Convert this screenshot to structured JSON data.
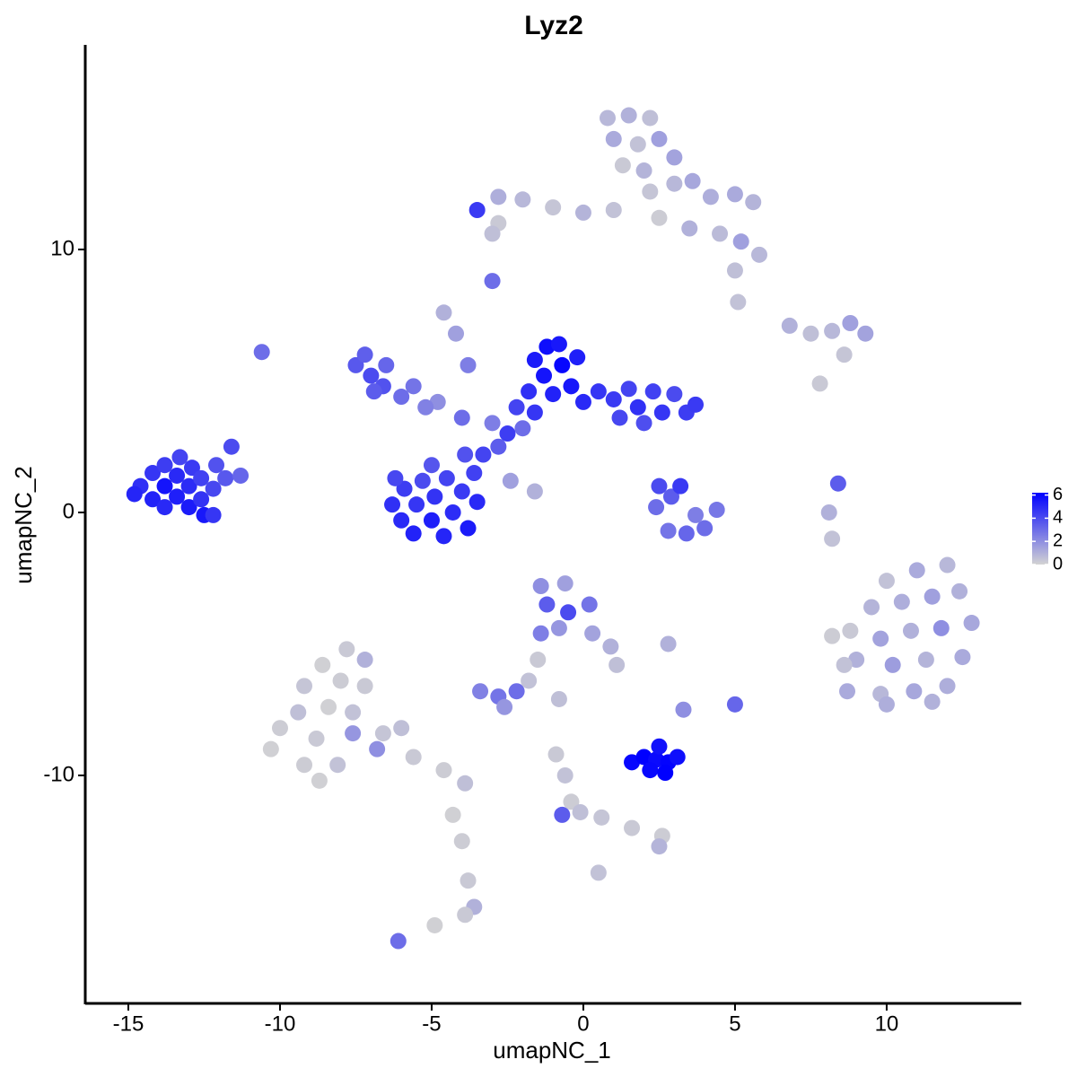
{
  "chart_data": {
    "type": "scatter",
    "title": "Lyz2",
    "x_label": "umapNC_1",
    "y_label": "umapNC_2",
    "xlim": [
      -16.42,
      14.44
    ],
    "xticks": [
      -15,
      -10,
      -5,
      0,
      5,
      10
    ],
    "ylim": [
      -18.67,
      17.78
    ],
    "yticks": [
      -10,
      0,
      10
    ],
    "colors": [
      "#d3d3d3",
      "#0000ff"
    ],
    "color_lim": [
      0,
      6.2
    ],
    "color_ticks": [
      0,
      2,
      4,
      6
    ],
    "x": [
      -14.6,
      -14.2,
      -14.2,
      -13.8,
      -13.8,
      -13.8,
      -13.4,
      -13.4,
      -13.3,
      -13.0,
      -13.0,
      -12.9,
      -12.6,
      -12.6,
      -12.5,
      -12.2,
      -12.1,
      -11.8,
      -11.6,
      -11.3,
      -14.8,
      -12.2,
      -6.3,
      -6.0,
      -5.9,
      -5.6,
      -5.5,
      -5.3,
      -5.0,
      -4.9,
      -4.6,
      -4.5,
      -4.3,
      -4.0,
      -3.8,
      -3.6,
      -3.9,
      -6.2,
      -5.0,
      -3.5,
      -3.3,
      -2.8,
      -2.5,
      -2.0,
      -1.6,
      -3.0,
      -4.0,
      -4.8,
      -7.5,
      -7.0,
      -7.2,
      -6.6,
      -6.5,
      -6.0,
      -5.6,
      -5.2,
      -6.9,
      -4.6,
      -4.2,
      -3.8,
      -1.6,
      -1.2,
      -0.8,
      -1.3,
      -0.7,
      -0.4,
      -1.0,
      -1.8,
      0.0,
      -0.2,
      -2.2,
      0.5,
      1.0,
      1.5,
      1.8,
      2.3,
      2.6,
      3.0,
      3.4,
      2.0,
      1.2,
      3.7,
      2.5,
      2.9,
      3.2,
      2.4,
      2.8,
      3.4,
      4.0,
      4.4,
      3.7,
      -2.4,
      -1.6,
      0.8,
      1.5,
      2.2,
      1.0,
      1.8,
      2.5,
      1.3,
      2.0,
      3.0,
      2.2,
      3.0,
      3.6,
      4.2,
      5.0,
      5.6,
      2.5,
      3.5,
      4.5,
      5.2,
      5.8,
      5.0,
      1.0,
      0.0,
      -1.0,
      -2.0,
      -2.8,
      -3.5,
      -2.8,
      -3.0,
      -3.0,
      5.1,
      6.8,
      7.5,
      8.2,
      8.8,
      9.3,
      8.6,
      7.8,
      8.4,
      8.1,
      8.2,
      -10.6,
      12.0,
      11.0,
      10.0,
      12.4,
      11.5,
      10.5,
      9.5,
      12.8,
      11.8,
      10.8,
      9.8,
      8.8,
      8.2,
      12.5,
      11.3,
      10.2,
      9.0,
      12.0,
      10.9,
      9.8,
      8.7,
      11.5,
      10.0,
      8.6,
      -7.8,
      -8.6,
      -7.2,
      -8.0,
      -9.2,
      -7.2,
      -8.4,
      -9.4,
      -7.6,
      -10.0,
      -8.8,
      -7.6,
      -6.6,
      -10.3,
      -9.2,
      -8.1,
      -6.8,
      -5.6,
      -4.6,
      -3.9,
      -8.7,
      -6.0,
      -4.3,
      -4.0,
      -3.8,
      -3.6,
      -3.9,
      -4.9,
      -6.1,
      -1.4,
      -0.6,
      -1.2,
      -0.5,
      0.2,
      -0.8,
      0.3,
      0.9,
      1.1,
      -1.4,
      -1.5,
      -1.8,
      -3.4,
      -2.8,
      -2.2,
      -2.6,
      -0.8,
      1.6,
      2.0,
      2.4,
      2.8,
      3.1,
      2.2,
      2.7,
      2.5,
      3.3,
      5.0,
      2.8,
      -0.9,
      -0.6,
      -0.4,
      -0.1,
      0.6,
      1.6,
      2.6,
      2.5,
      -0.7,
      0.5
    ],
    "y": [
      1.0,
      0.5,
      1.5,
      0.2,
      1.0,
      1.8,
      0.6,
      1.4,
      2.1,
      0.2,
      1.0,
      1.7,
      0.5,
      1.3,
      -0.1,
      0.9,
      1.8,
      1.3,
      2.5,
      1.4,
      0.7,
      -0.1,
      0.3,
      -0.3,
      0.9,
      -0.8,
      0.3,
      1.2,
      -0.3,
      0.6,
      -0.9,
      1.3,
      0.0,
      0.8,
      -0.6,
      1.5,
      2.2,
      1.3,
      1.8,
      0.4,
      2.2,
      2.5,
      3.0,
      3.2,
      3.8,
      3.4,
      3.6,
      4.2,
      5.6,
      5.2,
      6.0,
      4.8,
      5.6,
      4.4,
      4.8,
      4.0,
      4.6,
      7.6,
      6.8,
      5.6,
      5.8,
      6.3,
      6.4,
      5.2,
      5.6,
      4.8,
      4.5,
      4.6,
      4.2,
      5.9,
      4.0,
      4.6,
      4.3,
      4.7,
      4.0,
      4.6,
      3.8,
      4.5,
      3.8,
      3.4,
      3.6,
      4.1,
      1.0,
      0.6,
      1.0,
      0.2,
      -0.7,
      -0.8,
      -0.6,
      0.1,
      -0.1,
      1.2,
      0.8,
      15.0,
      15.1,
      15.0,
      14.2,
      14.0,
      14.2,
      13.2,
      13.0,
      13.5,
      12.2,
      12.5,
      12.6,
      12.0,
      12.1,
      11.8,
      11.2,
      10.8,
      10.6,
      10.3,
      9.8,
      9.2,
      11.5,
      11.4,
      11.6,
      11.9,
      12.0,
      11.5,
      11.0,
      10.6,
      8.8,
      8.0,
      7.1,
      6.8,
      6.9,
      7.2,
      6.8,
      6.0,
      4.9,
      1.1,
      0.0,
      -1.0,
      6.1,
      -2.0,
      -2.2,
      -2.6,
      -3.0,
      -3.2,
      -3.4,
      -3.6,
      -4.2,
      -4.4,
      -4.5,
      -4.8,
      -4.5,
      -4.7,
      -5.5,
      -5.6,
      -5.8,
      -5.6,
      -6.6,
      -6.8,
      -6.9,
      -6.8,
      -7.2,
      -7.3,
      -5.8,
      -5.2,
      -5.8,
      -5.6,
      -6.4,
      -6.6,
      -6.6,
      -7.4,
      -7.6,
      -7.6,
      -8.2,
      -8.6,
      -8.4,
      -8.4,
      -9.0,
      -9.6,
      -9.6,
      -9.0,
      -9.3,
      -9.8,
      -10.3,
      -10.2,
      -8.2,
      -11.5,
      -12.5,
      -14.0,
      -15.0,
      -15.3,
      -15.7,
      -16.3,
      -2.8,
      -2.7,
      -3.5,
      -3.8,
      -3.5,
      -4.4,
      -4.6,
      -5.1,
      -5.8,
      -4.6,
      -5.6,
      -6.4,
      -6.8,
      -7.0,
      -6.8,
      -7.4,
      -7.1,
      -9.5,
      -9.3,
      -9.4,
      -9.5,
      -9.3,
      -9.8,
      -9.9,
      -8.9,
      -7.5,
      -7.3,
      -5.0,
      -9.2,
      -10.0,
      -11.0,
      -11.4,
      -11.6,
      -12.0,
      -12.3,
      -12.7,
      -11.5,
      -13.7
    ],
    "values": [
      4.8,
      5.2,
      4.6,
      5.0,
      5.6,
      4.4,
      5.3,
      5.0,
      4.2,
      5.4,
      4.9,
      4.5,
      4.7,
      4.3,
      5.5,
      4.1,
      3.8,
      3.6,
      4.0,
      3.2,
      5.1,
      4.6,
      4.8,
      5.0,
      4.4,
      5.2,
      4.6,
      4.0,
      5.3,
      4.7,
      5.1,
      4.2,
      4.9,
      4.5,
      5.4,
      4.3,
      3.8,
      4.1,
      3.7,
      5.0,
      4.2,
      3.5,
      4.4,
      3.0,
      4.6,
      2.5,
      3.0,
      2.0,
      3.6,
      4.0,
      3.4,
      3.8,
      3.2,
      3.0,
      2.8,
      2.4,
      3.5,
      1.0,
      1.5,
      2.5,
      5.4,
      5.8,
      5.5,
      5.6,
      6.0,
      5.5,
      5.2,
      4.8,
      5.0,
      5.3,
      4.2,
      4.6,
      4.5,
      4.2,
      4.8,
      4.3,
      4.6,
      4.0,
      4.4,
      3.9,
      4.1,
      4.5,
      4.0,
      3.5,
      4.5,
      3.0,
      2.8,
      3.2,
      3.0,
      2.7,
      2.5,
      1.5,
      1.0,
      0.8,
      1.0,
      0.6,
      1.2,
      0.5,
      1.5,
      0.3,
      0.9,
      1.4,
      0.4,
      0.8,
      1.3,
      1.1,
      1.2,
      0.9,
      0.2,
      1.0,
      0.7,
      1.5,
      0.8,
      0.6,
      0.5,
      0.9,
      0.4,
      0.8,
      1.1,
      4.5,
      0.3,
      0.6,
      3.0,
      0.5,
      1.0,
      0.6,
      0.8,
      1.5,
      1.4,
      0.4,
      0.3,
      3.5,
      1.0,
      0.5,
      3.0,
      0.8,
      1.2,
      0.5,
      1.0,
      1.5,
      1.1,
      0.9,
      1.3,
      2.0,
      1.0,
      1.4,
      0.3,
      0.2,
      1.2,
      0.9,
      1.6,
      1.0,
      1.1,
      1.3,
      0.8,
      1.2,
      1.0,
      1.1,
      0.5,
      0.3,
      0.1,
      1.0,
      0.2,
      0.4,
      0.3,
      0.1,
      0.6,
      0.5,
      0.2,
      0.3,
      1.8,
      0.4,
      0.1,
      0.2,
      0.5,
      2.0,
      0.3,
      0.2,
      0.6,
      0.1,
      0.6,
      0.1,
      0.2,
      0.3,
      1.0,
      0.3,
      0.1,
      3.0,
      2.0,
      1.5,
      3.5,
      4.0,
      2.8,
      1.8,
      1.4,
      1.0,
      0.6,
      2.5,
      0.3,
      0.5,
      2.4,
      2.8,
      3.0,
      1.8,
      0.6,
      6.0,
      6.2,
      5.9,
      6.1,
      5.8,
      6.0,
      6.2,
      5.7,
      2.0,
      3.2,
      1.0,
      0.3,
      0.5,
      0.2,
      0.6,
      0.4,
      0.3,
      0.2,
      0.9,
      3.5,
      0.5
    ]
  }
}
